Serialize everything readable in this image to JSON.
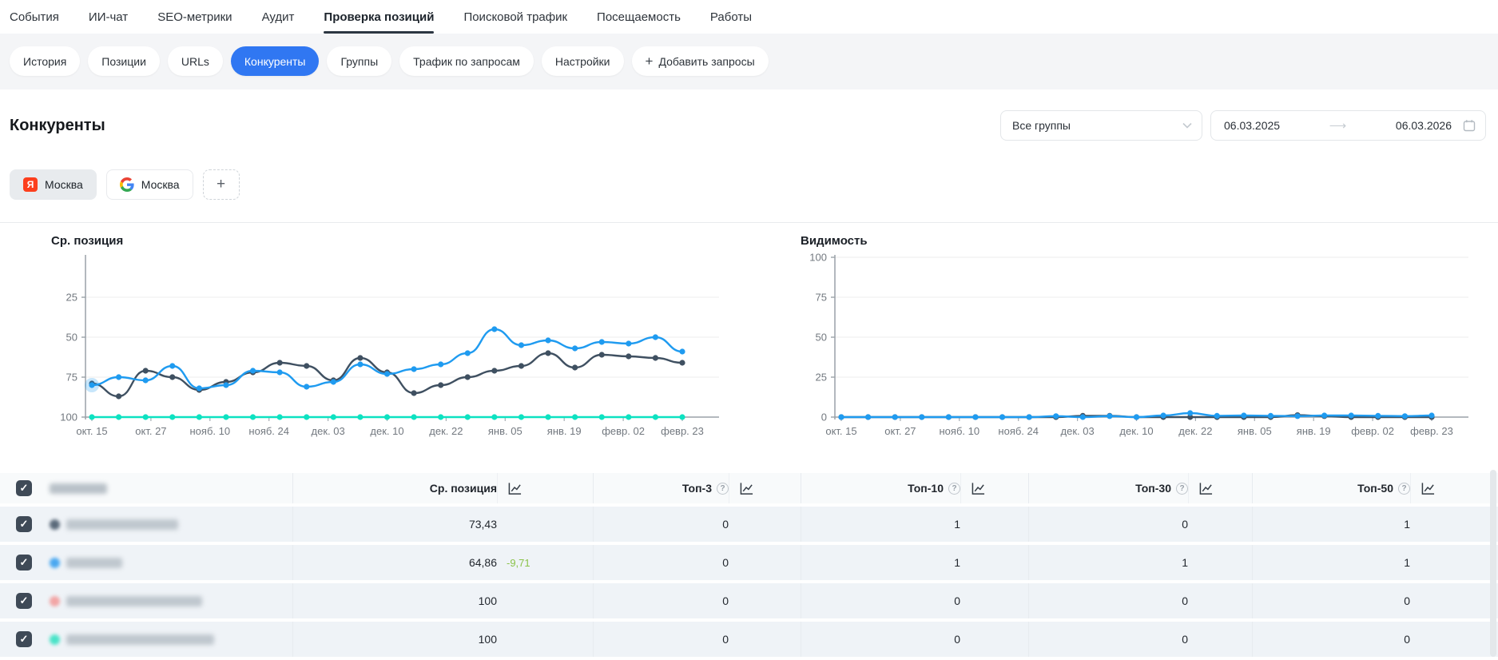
{
  "topnav": {
    "items": [
      "События",
      "ИИ-чат",
      "SEO-метрики",
      "Аудит",
      "Проверка позиций",
      "Поисковой трафик",
      "Посещаемость",
      "Работы"
    ],
    "active": "Проверка позиций"
  },
  "subnav": {
    "tabs": [
      "История",
      "Позиции",
      "URLs",
      "Конкуренты",
      "Группы",
      "Трафик по запросам",
      "Настройки"
    ],
    "active": "Конкуренты",
    "active_color": "#3077f2",
    "add_button_label": "Добавить запросы"
  },
  "page": {
    "title": "Конкуренты"
  },
  "filters": {
    "groups_select": {
      "value": "Все группы"
    },
    "date_range": {
      "from": "06.03.2025",
      "to": "06.03.2026"
    }
  },
  "engine_tabs": [
    {
      "engine": "yandex",
      "engine_badge": "Я",
      "label": "Москва",
      "active": true
    },
    {
      "engine": "google",
      "label": "Москва",
      "active": false
    }
  ],
  "chart_data": [
    {
      "type": "line",
      "title": "Ср. позиция",
      "y_inverted": true,
      "ylim": [
        0,
        100
      ],
      "y_ticks": [
        25,
        50,
        75,
        100
      ],
      "grid": true,
      "legend": "none",
      "x_labels": [
        "окт. 15",
        "окт. 27",
        "нояб. 10",
        "нояб. 24",
        "дек. 03",
        "дек. 10",
        "дек. 22",
        "янв. 05",
        "янв. 19",
        "февр. 02",
        "февр. 23"
      ],
      "series": [
        {
          "name": "competitor-dark",
          "color": "#3f5061",
          "values": [
            79,
            87,
            71,
            75,
            83,
            78,
            72,
            66,
            68,
            77,
            63,
            72,
            85,
            80,
            75,
            71,
            68,
            60,
            69,
            61,
            62,
            63,
            66
          ]
        },
        {
          "name": "competitor-teal",
          "color": "#0de2c1",
          "values": [
            100,
            100,
            100,
            100,
            100,
            100,
            100,
            100,
            100,
            100,
            100,
            100,
            100,
            100,
            100,
            100,
            100,
            100,
            100,
            100,
            100,
            100,
            100
          ]
        },
        {
          "name": "competitor-blue",
          "color": "#1f9bf0",
          "values": [
            80,
            75,
            77,
            68,
            82,
            80,
            71,
            72,
            81,
            78,
            67,
            73,
            70,
            67,
            60,
            45,
            55,
            52,
            57,
            53,
            54,
            50,
            59
          ]
        }
      ],
      "highlight": {
        "series": "competitor-blue",
        "index": 0
      }
    },
    {
      "type": "line",
      "title": "Видимость",
      "y_inverted": false,
      "ylim": [
        0,
        100
      ],
      "y_ticks": [
        0,
        25,
        50,
        75,
        100
      ],
      "grid": true,
      "legend": "none",
      "x_labels": [
        "окт. 15",
        "окт. 27",
        "нояб. 10",
        "нояб. 24",
        "дек. 03",
        "дек. 10",
        "дек. 22",
        "янв. 05",
        "янв. 19",
        "февр. 02",
        "февр. 23"
      ],
      "series": [
        {
          "name": "competitor-dark",
          "color": "#3f5061",
          "values": [
            0,
            0,
            0,
            0,
            0,
            0,
            0,
            0,
            0,
            0.8,
            0.8,
            0,
            0,
            0,
            0,
            0,
            0,
            1.2,
            0.6,
            0,
            0,
            0,
            0
          ]
        },
        {
          "name": "competitor-blue",
          "color": "#1f9bf0",
          "values": [
            0,
            0,
            0,
            0,
            0,
            0,
            0,
            0,
            0.6,
            0,
            0.6,
            0,
            1,
            2.5,
            0.8,
            1,
            0.8,
            0.6,
            1,
            1,
            0.8,
            0.6,
            1
          ]
        }
      ]
    }
  ],
  "table": {
    "select_all_checked": true,
    "columns": [
      {
        "label": "Ср. позиция",
        "help": false
      },
      {
        "label": "Топ-3",
        "help": true
      },
      {
        "label": "Топ-10",
        "help": true
      },
      {
        "label": "Топ-30",
        "help": true
      },
      {
        "label": "Топ-50",
        "help": true
      }
    ],
    "change_color": "#8bc34a",
    "rows": [
      {
        "name_redacted": true,
        "dot_color": "#5b6a7a",
        "checked": true,
        "avg_position": "73,43",
        "change": "",
        "top3": "0",
        "top10": "1",
        "top30": "0",
        "top50": "1"
      },
      {
        "name_redacted": true,
        "dot_color": "#4aa8f0",
        "checked": true,
        "avg_position": "64,86",
        "change": "-9,71",
        "top3": "0",
        "top10": "1",
        "top30": "1",
        "top50": "1"
      },
      {
        "name_redacted": true,
        "dot_color": "#f2a5a5",
        "checked": true,
        "avg_position": "100",
        "change": "",
        "top3": "0",
        "top10": "0",
        "top30": "0",
        "top50": "0"
      },
      {
        "name_redacted": true,
        "dot_color": "#4ae3c8",
        "checked": true,
        "avg_position": "100",
        "change": "",
        "top3": "0",
        "top10": "0",
        "top30": "0",
        "top50": "0"
      }
    ]
  }
}
